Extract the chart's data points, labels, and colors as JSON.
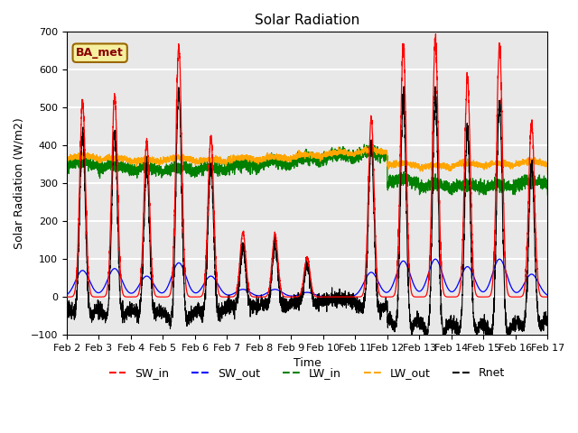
{
  "title": "Solar Radiation",
  "xlabel": "Time",
  "ylabel": "Solar Radiation (W/m2)",
  "ylim": [
    -100,
    700
  ],
  "yticks": [
    -100,
    0,
    100,
    200,
    300,
    400,
    500,
    600,
    700
  ],
  "xlim": [
    0,
    15
  ],
  "xtick_labels": [
    "Feb 2",
    "Feb 3",
    "Feb 4",
    "Feb 5",
    "Feb 6",
    "Feb 7",
    "Feb 8",
    "Feb 9",
    "Feb 10",
    "Feb 11",
    "Feb 12",
    "Feb 13",
    "Feb 14",
    "Feb 15",
    "Feb 16",
    "Feb 17"
  ],
  "xtick_positions": [
    0,
    1,
    2,
    3,
    4,
    5,
    6,
    7,
    8,
    9,
    10,
    11,
    12,
    13,
    14,
    15
  ],
  "legend_labels": [
    "SW_in",
    "SW_out",
    "LW_in",
    "LW_out",
    "Rnet"
  ],
  "legend_colors": [
    "red",
    "blue",
    "green",
    "orange",
    "black"
  ],
  "annotation_text": "BA_met",
  "background_color": "#e8e8e8",
  "grid_color": "white",
  "n_days": 15,
  "points_per_day": 288,
  "seed": 42,
  "day_peaks": [
    515,
    530,
    410,
    660,
    420,
    170,
    165,
    105,
    0,
    470,
    660,
    680,
    580,
    670,
    460
  ],
  "sw_out_peaks": [
    70,
    75,
    55,
    90,
    55,
    20,
    20,
    12,
    0,
    65,
    95,
    100,
    80,
    100,
    60
  ],
  "lw_in_base": [
    345,
    335,
    330,
    330,
    330,
    340,
    345,
    355,
    365,
    370,
    300,
    285,
    285,
    285,
    295
  ],
  "lw_out_base": [
    365,
    360,
    355,
    360,
    355,
    360,
    362,
    368,
    375,
    380,
    345,
    340,
    345,
    345,
    350
  ],
  "night_rnet": -45,
  "title_fontsize": 11,
  "label_fontsize": 9,
  "tick_fontsize": 8
}
